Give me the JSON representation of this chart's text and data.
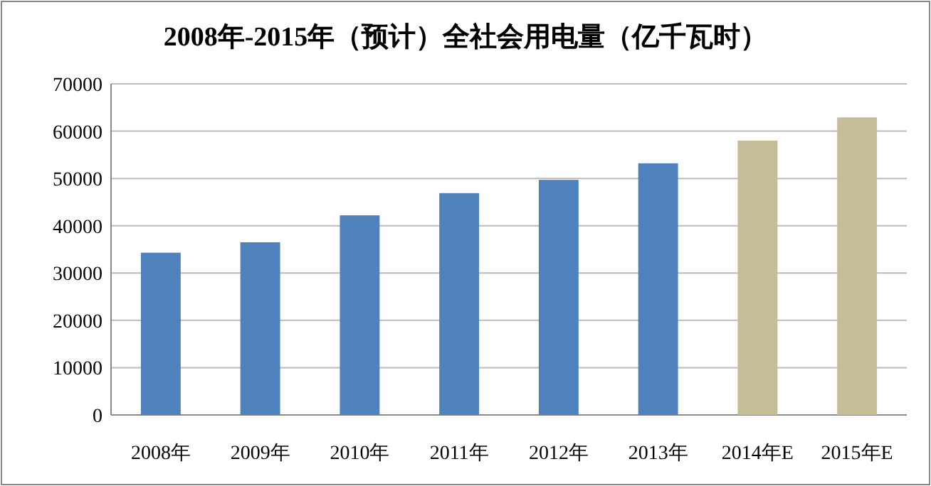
{
  "chart_data": {
    "type": "bar",
    "title": "2008年-2015年（预计）全社会用电量（亿千瓦时）",
    "categories": [
      "2008年",
      "2009年",
      "2010年",
      "2011年",
      "2012年",
      "2013年",
      "2014年E",
      "2015年E"
    ],
    "values": [
      34300,
      36500,
      42200,
      46900,
      49700,
      53200,
      58000,
      62900
    ],
    "colors": [
      "#4f81bd",
      "#4f81bd",
      "#4f81bd",
      "#4f81bd",
      "#4f81bd",
      "#4f81bd",
      "#c4bd97",
      "#c4bd97"
    ],
    "ylim": [
      0,
      70000
    ],
    "yticks": [
      0,
      10000,
      20000,
      30000,
      40000,
      50000,
      60000,
      70000
    ],
    "grid": "y"
  }
}
